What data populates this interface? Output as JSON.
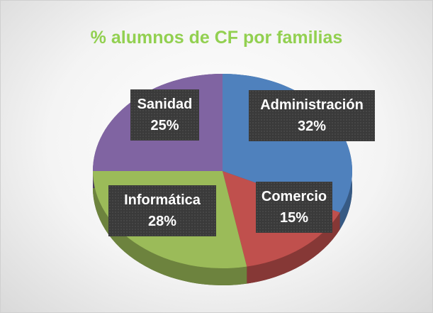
{
  "chart_data": {
    "type": "pie",
    "title": "% alumnos de CF por familias",
    "categories": [
      "Administración",
      "Comercio",
      "Informática",
      "Sanidad"
    ],
    "values": [
      32,
      15,
      28,
      25
    ],
    "value_labels": [
      "32%",
      "15%",
      "28%",
      "25%"
    ],
    "colors": [
      "#4f81bd",
      "#c0504d",
      "#9bbb59",
      "#8064a2"
    ],
    "three_d": true
  }
}
